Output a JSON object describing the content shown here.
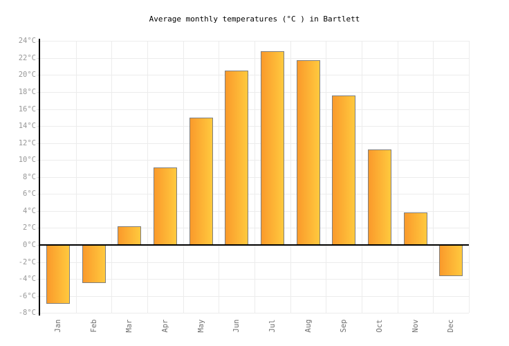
{
  "title": "Average monthly temperatures (°C ) in Bartlett",
  "chart_data": {
    "type": "bar",
    "title": "Average monthly temperatures (°C ) in Bartlett",
    "categories": [
      "Jan",
      "Feb",
      "Mar",
      "Apr",
      "May",
      "Jun",
      "Jul",
      "Aug",
      "Sep",
      "Oct",
      "Nov",
      "Dec"
    ],
    "values": [
      -6.9,
      -4.5,
      2.2,
      9.1,
      15,
      20.5,
      22.8,
      21.7,
      17.6,
      11.2,
      3.8,
      -3.7
    ],
    "xlabel": "",
    "ylabel": "",
    "ylim": [
      -8,
      24
    ],
    "y_tick_step": 2,
    "y_ticks": [
      "24°C",
      "22°C",
      "20°C",
      "18°C",
      "16°C",
      "14°C",
      "12°C",
      "10°C",
      "8°C",
      "6°C",
      "4°C",
      "2°C",
      "0°C",
      "-2°C",
      "-4°C",
      "-6°C",
      "-8°C"
    ],
    "grid": true,
    "legend_position": "none",
    "colors": {
      "bar_gradient_left": "#FA9A2B",
      "bar_gradient_right": "#FFC93E",
      "bar_border": "#7E7E7E",
      "gridline": "#ECECEC",
      "tick": "#E0E0E0",
      "axis": "#000000",
      "zero_line": "#000000",
      "y_label": "#989898",
      "x_label": "#6E6E6E",
      "title": "#000000",
      "background": "#FFFFFF"
    }
  }
}
